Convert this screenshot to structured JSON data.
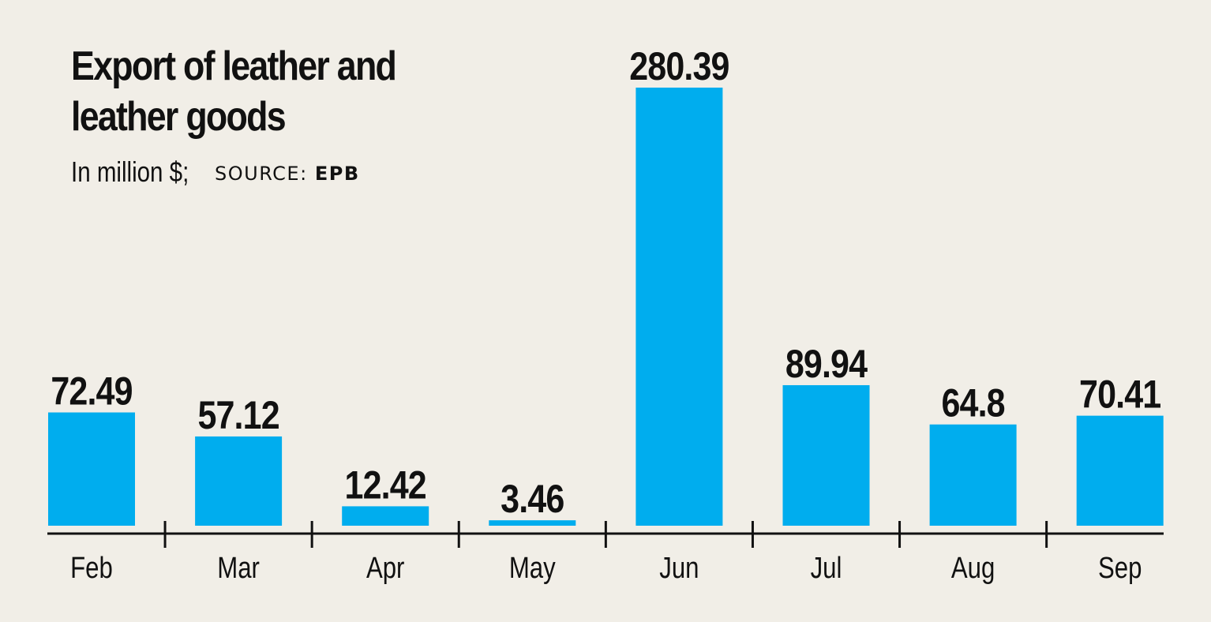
{
  "chart_data": {
    "type": "bar",
    "title_lines": [
      "Export of leather and",
      "leather goods"
    ],
    "unit_label": "In million $;",
    "source_prefix": "SOURCE:",
    "source_name": "EPB",
    "categories": [
      "Feb",
      "Mar",
      "Apr",
      "May",
      "Jun",
      "Jul",
      "Aug",
      "Sep"
    ],
    "values": [
      72.49,
      57.12,
      12.42,
      3.46,
      280.39,
      89.94,
      64.8,
      70.41
    ],
    "value_labels": [
      "72.49",
      "57.12",
      "12.42",
      "3.46",
      "280.39",
      "89.94",
      "64.8",
      "70.41"
    ],
    "ylim": [
      0,
      280.39
    ],
    "grid": false,
    "legend": "none",
    "colors": {
      "bar": "#00adee",
      "background": "#f1eee7",
      "text": "#111111",
      "axis": "#111111"
    }
  }
}
